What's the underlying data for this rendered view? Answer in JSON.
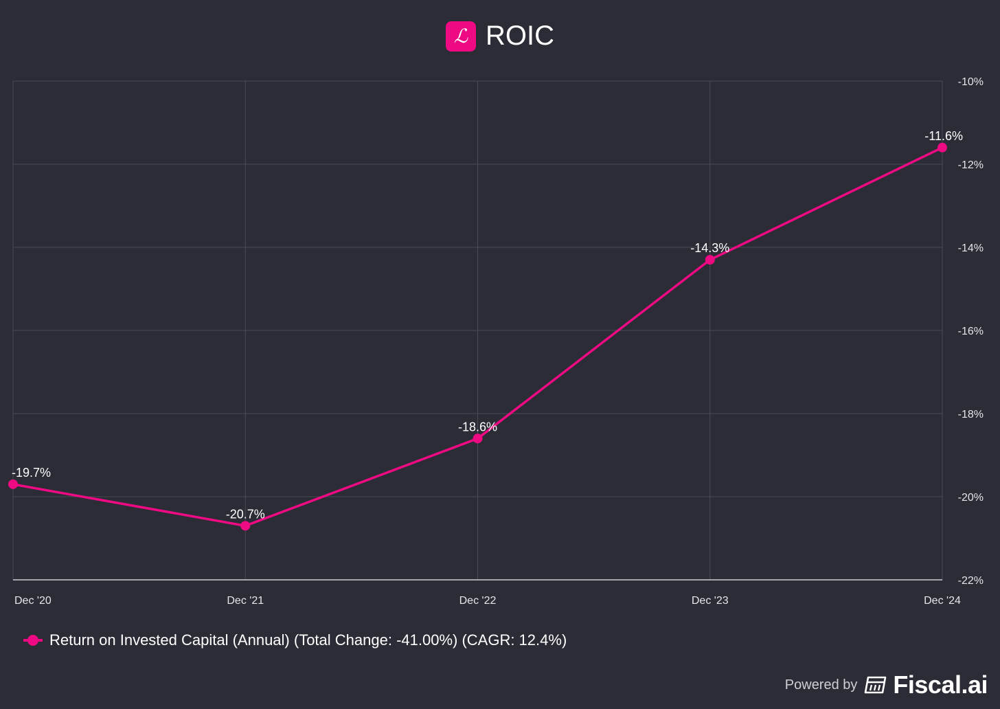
{
  "header": {
    "logo_glyph": "ℒ",
    "title": "ROIC"
  },
  "colors": {
    "background": "#2b2c35",
    "accent": "#ee0a83",
    "grid": "#4a4b55",
    "text": "#ffffff"
  },
  "chart_data": {
    "type": "line",
    "title": "ROIC",
    "categories": [
      "Dec '20",
      "Dec '21",
      "Dec '22",
      "Dec '23",
      "Dec '24"
    ],
    "series": [
      {
        "name": "Return on Invested Capital (Annual) (Total Change: -41.00%) (CAGR: 12.4%)",
        "values": [
          -19.7,
          -20.7,
          -18.6,
          -14.3,
          -11.6
        ],
        "data_labels": [
          "-19.7%",
          "-20.7%",
          "-18.6%",
          "-14.3%",
          "-11.6%"
        ]
      }
    ],
    "y_ticks": [
      -10,
      -12,
      -14,
      -16,
      -18,
      -20,
      -22
    ],
    "y_tick_labels": [
      "-10%",
      "-12%",
      "-14%",
      "-16%",
      "-18%",
      "-20%",
      "-22%"
    ],
    "ylim": [
      -22,
      -10
    ],
    "y_axis_side": "right",
    "grid": true,
    "legend_position": "bottom-left"
  },
  "legend": {
    "label": "Return on Invested Capital (Annual) (Total Change: -41.00%) (CAGR: 12.4%)"
  },
  "footer": {
    "powered_by": "Powered by",
    "brand": "Fiscal.ai",
    "brand_icon": "calculator-icon"
  }
}
